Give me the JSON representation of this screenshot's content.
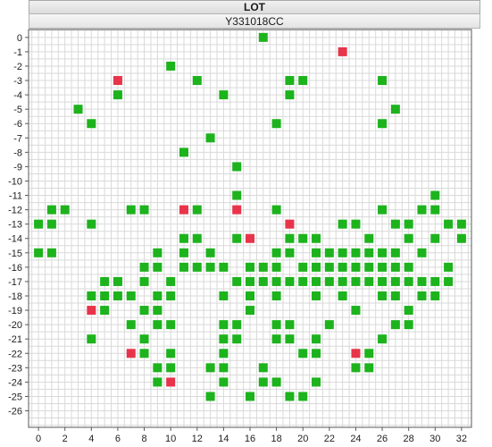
{
  "header": {
    "title": "LOT",
    "lot_id": "Y331018CC"
  },
  "colors": {
    "pass": "#1db31d",
    "fail": "#e8344a",
    "grid": "#d9d9d9",
    "frame": "#5a5a5a"
  },
  "chart_data": {
    "type": "scatter",
    "title": "",
    "xlabel": "",
    "ylabel": "",
    "xlim": [
      0,
      32
    ],
    "ylim": [
      -26,
      0
    ],
    "x_ticks": [
      "0",
      "2",
      "4",
      "6",
      "8",
      "10",
      "12",
      "14",
      "16",
      "18",
      "20",
      "22",
      "24",
      "26",
      "28",
      "30",
      "32"
    ],
    "y_ticks": [
      "0",
      "-1",
      "-2",
      "-3",
      "-4",
      "-5",
      "-6",
      "-7",
      "-8",
      "-9",
      "-10",
      "-11",
      "-12",
      "-13",
      "-14",
      "-15",
      "-16",
      "-17",
      "-18",
      "-19",
      "-20",
      "-21",
      "-22",
      "-23",
      "-24",
      "-25",
      "-26"
    ],
    "series": [
      {
        "marker": "square",
        "color": "#1db31d",
        "points": [
          [
            17,
            0
          ],
          [
            10,
            -2
          ],
          [
            12,
            -3
          ],
          [
            19,
            -3
          ],
          [
            20,
            -3
          ],
          [
            26,
            -3
          ],
          [
            6,
            -4
          ],
          [
            14,
            -4
          ],
          [
            19,
            -4
          ],
          [
            3,
            -5
          ],
          [
            27,
            -5
          ],
          [
            4,
            -6
          ],
          [
            18,
            -6
          ],
          [
            26,
            -6
          ],
          [
            13,
            -7
          ],
          [
            11,
            -8
          ],
          [
            15,
            -9
          ],
          [
            15,
            -11
          ],
          [
            30,
            -11
          ],
          [
            1,
            -12
          ],
          [
            2,
            -12
          ],
          [
            7,
            -12
          ],
          [
            8,
            -12
          ],
          [
            12,
            -12
          ],
          [
            18,
            -12
          ],
          [
            26,
            -12
          ],
          [
            29,
            -12
          ],
          [
            30,
            -12
          ],
          [
            0,
            -13
          ],
          [
            1,
            -13
          ],
          [
            4,
            -13
          ],
          [
            23,
            -13
          ],
          [
            24,
            -13
          ],
          [
            27,
            -13
          ],
          [
            28,
            -13
          ],
          [
            31,
            -13
          ],
          [
            32,
            -13
          ],
          [
            11,
            -14
          ],
          [
            12,
            -14
          ],
          [
            15,
            -14
          ],
          [
            19,
            -14
          ],
          [
            20,
            -14
          ],
          [
            21,
            -14
          ],
          [
            25,
            -14
          ],
          [
            28,
            -14
          ],
          [
            30,
            -14
          ],
          [
            32,
            -14
          ],
          [
            0,
            -15
          ],
          [
            1,
            -15
          ],
          [
            9,
            -15
          ],
          [
            11,
            -15
          ],
          [
            13,
            -15
          ],
          [
            18,
            -15
          ],
          [
            19,
            -15
          ],
          [
            21,
            -15
          ],
          [
            22,
            -15
          ],
          [
            23,
            -15
          ],
          [
            24,
            -15
          ],
          [
            25,
            -15
          ],
          [
            26,
            -15
          ],
          [
            27,
            -15
          ],
          [
            29,
            -15
          ],
          [
            8,
            -16
          ],
          [
            9,
            -16
          ],
          [
            11,
            -16
          ],
          [
            12,
            -16
          ],
          [
            13,
            -16
          ],
          [
            14,
            -16
          ],
          [
            16,
            -16
          ],
          [
            17,
            -16
          ],
          [
            18,
            -16
          ],
          [
            20,
            -16
          ],
          [
            21,
            -16
          ],
          [
            22,
            -16
          ],
          [
            23,
            -16
          ],
          [
            24,
            -16
          ],
          [
            25,
            -16
          ],
          [
            26,
            -16
          ],
          [
            27,
            -16
          ],
          [
            28,
            -16
          ],
          [
            31,
            -16
          ],
          [
            5,
            -17
          ],
          [
            6,
            -17
          ],
          [
            8,
            -17
          ],
          [
            10,
            -17
          ],
          [
            15,
            -17
          ],
          [
            16,
            -17
          ],
          [
            17,
            -17
          ],
          [
            18,
            -17
          ],
          [
            19,
            -17
          ],
          [
            20,
            -17
          ],
          [
            21,
            -17
          ],
          [
            22,
            -17
          ],
          [
            23,
            -17
          ],
          [
            24,
            -17
          ],
          [
            25,
            -17
          ],
          [
            26,
            -17
          ],
          [
            27,
            -17
          ],
          [
            28,
            -17
          ],
          [
            29,
            -17
          ],
          [
            30,
            -17
          ],
          [
            31,
            -17
          ],
          [
            4,
            -18
          ],
          [
            5,
            -18
          ],
          [
            6,
            -18
          ],
          [
            7,
            -18
          ],
          [
            9,
            -18
          ],
          [
            10,
            -18
          ],
          [
            14,
            -18
          ],
          [
            16,
            -18
          ],
          [
            18,
            -18
          ],
          [
            21,
            -18
          ],
          [
            23,
            -18
          ],
          [
            26,
            -18
          ],
          [
            27,
            -18
          ],
          [
            29,
            -18
          ],
          [
            30,
            -18
          ],
          [
            5,
            -19
          ],
          [
            8,
            -19
          ],
          [
            9,
            -19
          ],
          [
            16,
            -19
          ],
          [
            24,
            -19
          ],
          [
            28,
            -19
          ],
          [
            7,
            -20
          ],
          [
            9,
            -20
          ],
          [
            10,
            -20
          ],
          [
            14,
            -20
          ],
          [
            15,
            -20
          ],
          [
            18,
            -20
          ],
          [
            19,
            -20
          ],
          [
            22,
            -20
          ],
          [
            27,
            -20
          ],
          [
            28,
            -20
          ],
          [
            4,
            -21
          ],
          [
            8,
            -21
          ],
          [
            14,
            -21
          ],
          [
            15,
            -21
          ],
          [
            18,
            -21
          ],
          [
            19,
            -21
          ],
          [
            21,
            -21
          ],
          [
            26,
            -21
          ],
          [
            8,
            -22
          ],
          [
            10,
            -22
          ],
          [
            14,
            -22
          ],
          [
            20,
            -22
          ],
          [
            21,
            -22
          ],
          [
            25,
            -22
          ],
          [
            9,
            -23
          ],
          [
            10,
            -23
          ],
          [
            13,
            -23
          ],
          [
            14,
            -23
          ],
          [
            17,
            -23
          ],
          [
            24,
            -23
          ],
          [
            25,
            -23
          ],
          [
            9,
            -24
          ],
          [
            14,
            -24
          ],
          [
            17,
            -24
          ],
          [
            18,
            -24
          ],
          [
            21,
            -24
          ],
          [
            13,
            -25
          ],
          [
            16,
            -25
          ],
          [
            19,
            -25
          ],
          [
            20,
            -25
          ]
        ]
      },
      {
        "marker": "square",
        "color": "#e8344a",
        "points": [
          [
            23,
            -1
          ],
          [
            6,
            -3
          ],
          [
            11,
            -12
          ],
          [
            15,
            -12
          ],
          [
            19,
            -13
          ],
          [
            16,
            -14
          ],
          [
            4,
            -19
          ],
          [
            7,
            -22
          ],
          [
            24,
            -22
          ],
          [
            10,
            -24
          ]
        ]
      }
    ]
  }
}
